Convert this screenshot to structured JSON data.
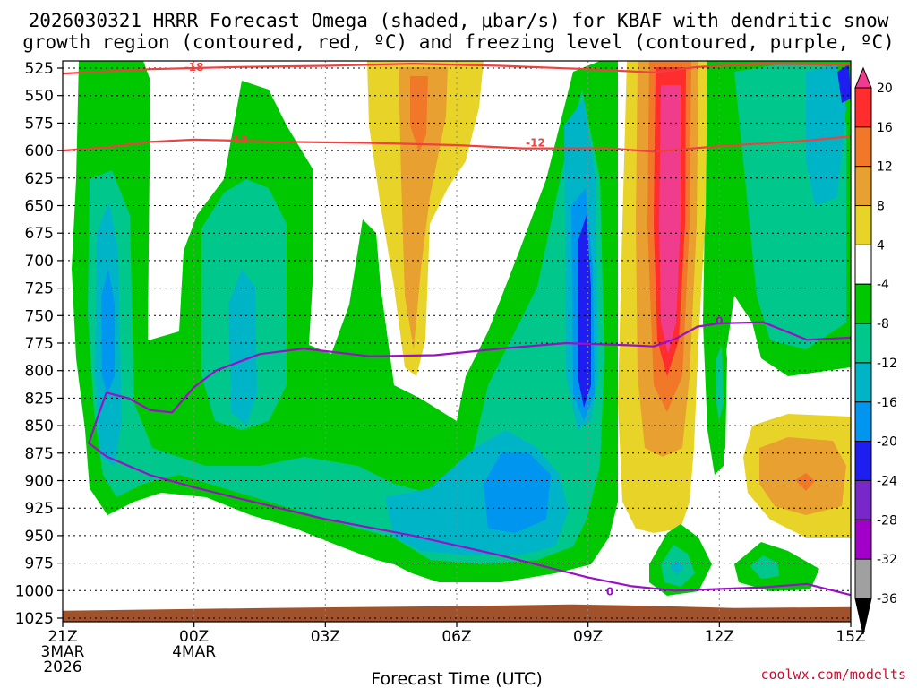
{
  "chart_data": {
    "type": "heatmap",
    "title_line1": "2026030321 HRRR Forecast Omega (shaded, μbar/s) for KBAF with dendritic snow",
    "title_line2": "growth region (contoured, red, ºC) and freezing level (contoured, purple, ºC)",
    "xlabel": "Forecast Time (UTC)",
    "credit": "coolwx.com/modelts",
    "y_ticks": [
      "525",
      "550",
      "575",
      "600",
      "625",
      "650",
      "675",
      "700",
      "725",
      "750",
      "775",
      "800",
      "825",
      "850",
      "875",
      "900",
      "925",
      "950",
      "975",
      "1000",
      "1025"
    ],
    "x_ticks": [
      {
        "label": "21Z",
        "sub1": "3MAR",
        "sub2": "2026",
        "hour": 0
      },
      {
        "label": "00Z",
        "sub1": "4MAR",
        "sub2": "",
        "hour": 3
      },
      {
        "label": "03Z",
        "sub1": "",
        "sub2": "",
        "hour": 6
      },
      {
        "label": "06Z",
        "sub1": "",
        "sub2": "",
        "hour": 9
      },
      {
        "label": "09Z",
        "sub1": "",
        "sub2": "",
        "hour": 12
      },
      {
        "label": "12Z",
        "sub1": "",
        "sub2": "",
        "hour": 15
      },
      {
        "label": "15Z",
        "sub1": "",
        "sub2": "",
        "hour": 18
      }
    ],
    "ylim": [
      1025,
      525
    ],
    "xlim": [
      0,
      18
    ],
    "colorbar": {
      "labels": [
        "20",
        "16",
        "12",
        "8",
        "4",
        "-4",
        "-8",
        "-12",
        "-16",
        "-20",
        "-24",
        "-28",
        "-32",
        "-36"
      ],
      "colors": [
        "#f03c8c",
        "#ff2d2d",
        "#f07828",
        "#e8a030",
        "#e8d428",
        "#ffffff",
        "#00c800",
        "#00c88c",
        "#00b4c8",
        "#0096f0",
        "#1e1ef0",
        "#7828c8",
        "#a000c8",
        "#a0a0a0",
        "#000000"
      ]
    },
    "contour_labels": {
      "dgz_top": "-18",
      "dgz_bottom": "-12",
      "freezing": "0"
    },
    "dgz_top_line": [
      [
        0,
        530
      ],
      [
        2,
        526
      ],
      [
        3,
        525
      ],
      [
        4,
        524
      ],
      [
        6,
        523
      ],
      [
        8,
        521
      ],
      [
        10,
        523
      ],
      [
        12,
        526
      ],
      [
        13.5,
        529
      ],
      [
        14.5,
        524
      ],
      [
        16,
        521
      ],
      [
        18,
        522
      ]
    ],
    "dgz_bottom_line": [
      [
        0,
        600
      ],
      [
        1,
        597
      ],
      [
        2,
        592
      ],
      [
        3,
        590
      ],
      [
        5,
        592
      ],
      [
        7,
        593
      ],
      [
        9,
        595
      ],
      [
        10.5,
        598
      ],
      [
        12.5,
        598
      ],
      [
        13.5,
        601
      ],
      [
        15,
        596
      ],
      [
        17,
        591
      ],
      [
        18,
        587
      ]
    ],
    "freezing_upper": [
      [
        1,
        820
      ],
      [
        1.5,
        825
      ],
      [
        2,
        836
      ],
      [
        2.5,
        838
      ],
      [
        3,
        815
      ],
      [
        3.5,
        800
      ],
      [
        4.5,
        785
      ],
      [
        5.5,
        780
      ],
      [
        7,
        787
      ],
      [
        8.5,
        786
      ],
      [
        10,
        780
      ],
      [
        11.5,
        775
      ],
      [
        13,
        777
      ],
      [
        13.5,
        778
      ],
      [
        14,
        771
      ],
      [
        14.5,
        760
      ],
      [
        15,
        757
      ],
      [
        16,
        756
      ],
      [
        17,
        772
      ],
      [
        18,
        770
      ]
    ],
    "freezing_lower": [
      [
        1,
        820
      ],
      [
        0.8,
        842
      ],
      [
        0.6,
        866
      ],
      [
        1,
        878
      ],
      [
        2,
        895
      ],
      [
        3,
        906
      ],
      [
        4,
        916
      ],
      [
        6,
        935
      ],
      [
        8,
        950
      ],
      [
        10,
        968
      ],
      [
        12,
        988
      ],
      [
        13,
        996
      ],
      [
        14,
        1000
      ],
      [
        16,
        997
      ],
      [
        17,
        994
      ],
      [
        18,
        1004
      ]
    ],
    "terrain_pressure": 1015
  }
}
